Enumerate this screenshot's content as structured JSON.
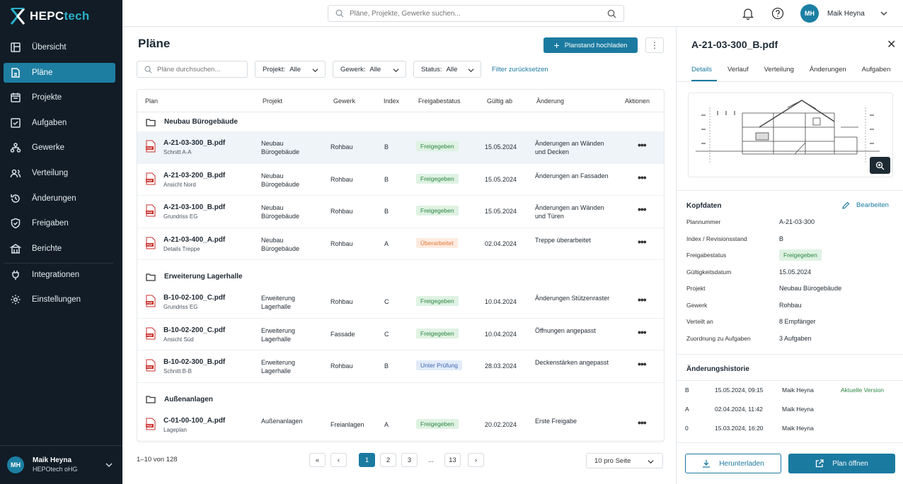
{
  "brand": {
    "name_main": "HEPC",
    "name_accent": "tech"
  },
  "nav": [
    {
      "label": "Übersicht",
      "icon": "overview-icon"
    },
    {
      "label": "Pläne",
      "icon": "plans-icon",
      "active": true
    },
    {
      "label": "Projekte",
      "icon": "projects-icon"
    },
    {
      "label": "Aufgaben",
      "icon": "tasks-icon"
    },
    {
      "label": "Gewerke",
      "icon": "trades-icon"
    },
    {
      "label": "Verteilung",
      "icon": "distribution-icon"
    },
    {
      "label": "Änderungen",
      "icon": "changes-icon"
    },
    {
      "label": "Freigaben",
      "icon": "approvals-icon"
    },
    {
      "label": "Berichte",
      "icon": "reports-icon"
    },
    {
      "label": "Integrationen",
      "icon": "integrations-icon"
    },
    {
      "label": "Einstellungen",
      "icon": "settings-icon"
    }
  ],
  "sidebar_user": {
    "initials": "MH",
    "name": "Maik Heyna",
    "company": "HEPOtech oHG"
  },
  "topbar": {
    "search_placeholder": "Pläne, Projekte, Gewerke suchen...",
    "user_initials": "MH",
    "user_name": "Maik Heyna"
  },
  "main": {
    "title": "Pläne",
    "upload_label": "Planstand hochladen",
    "more_label": "⋮",
    "filter_placeholder": "Pläne durchsuchen...",
    "filters": [
      {
        "label": "Projekt:",
        "value": "Alle"
      },
      {
        "label": "Gewerk:",
        "value": "Alle"
      },
      {
        "label": "Status:",
        "value": "Alle"
      }
    ],
    "reset_label": "Filter zurücksetzen",
    "columns": [
      "Plan",
      "Projekt",
      "Gewerk",
      "Index",
      "Freigabestatus",
      "Gültig ab",
      "Änderung",
      "Aktionen"
    ],
    "groups": [
      {
        "name": "Neubau Bürogebäude",
        "rows": [
          {
            "file": "A-21-03-300_B.pdf",
            "sub": "Schnitt A-A",
            "project": "Neubau Bürogebäude",
            "trade": "Rohbau",
            "index": "B",
            "status": "Freigegeben",
            "status_type": "green",
            "date": "15.05.2024",
            "change": "Änderungen an Wänden und Decken",
            "selected": true
          },
          {
            "file": "A-21-03-200_B.pdf",
            "sub": "Ansicht Nord",
            "project": "Neubau Bürogebäude",
            "trade": "Rohbau",
            "index": "B",
            "status": "Freigegeben",
            "status_type": "green",
            "date": "15.05.2024",
            "change": "Änderungen an Fassaden"
          },
          {
            "file": "A-21-03-100_B.pdf",
            "sub": "Grundriss EG",
            "project": "Neubau Bürogebäude",
            "trade": "Rohbau",
            "index": "B",
            "status": "Freigegeben",
            "status_type": "green",
            "date": "15.05.2024",
            "change": "Änderungen an Wänden und Türen"
          },
          {
            "file": "A-21-03-400_A.pdf",
            "sub": "Details Treppe",
            "project": "Neubau Bürogebäude",
            "trade": "Rohbau",
            "index": "A",
            "status": "Überarbeitet",
            "status_type": "orange",
            "date": "02.04.2024",
            "change": "Treppe überarbeitet"
          }
        ]
      },
      {
        "name": "Erweiterung Lagerhalle",
        "rows": [
          {
            "file": "B-10-02-100_C.pdf",
            "sub": "Grundriss EG",
            "project": "Erweiterung Lagerhalle",
            "trade": "Rohbau",
            "index": "C",
            "status": "Freigegeben",
            "status_type": "green",
            "date": "10.04.2024",
            "change": "Änderungen Stützenraster"
          },
          {
            "file": "B-10-02-200_C.pdf",
            "sub": "Ansicht Süd",
            "project": "Erweiterung Lagerhalle",
            "trade": "Fassade",
            "index": "C",
            "status": "Freigegeben",
            "status_type": "green",
            "date": "10.04.2024",
            "change": "Öffnungen angepasst"
          },
          {
            "file": "B-10-02-300_B.pdf",
            "sub": "Schnitt B-B",
            "project": "Erweiterung Lagerhalle",
            "trade": "Rohbau",
            "index": "B",
            "status": "Unter Prüfung",
            "status_type": "blue",
            "date": "28.03.2024",
            "change": "Deckenstärken angepasst"
          }
        ]
      },
      {
        "name": "Außenanlagen",
        "rows": [
          {
            "file": "C-01-00-100_A.pdf",
            "sub": "Lageplan",
            "project": "Außenanlagen",
            "trade": "Freianlagen",
            "index": "A",
            "status": "Freigegeben",
            "status_type": "green",
            "date": "20.02.2024",
            "change": "Erste Freigabe"
          }
        ]
      }
    ],
    "count_text": "1–10 von 128",
    "pages": [
      "«",
      "‹",
      "1",
      "2",
      "3",
      "...",
      "13",
      "›"
    ],
    "per_page": "10 pro Seite"
  },
  "panel": {
    "title": "A-21-03-300_B.pdf",
    "tabs": [
      "Details",
      "Verlauf",
      "Verteilung",
      "Änderungen",
      "Aufgaben"
    ],
    "kopf_title": "Kopfdaten",
    "edit_label": "Bearbeiten",
    "fields": [
      {
        "key": "Plannummer",
        "value": "A-21-03-300"
      },
      {
        "key": "Index / Revisionsstand",
        "value": "B"
      },
      {
        "key": "Freigabestatus",
        "value": "Freigegeben",
        "badge": true
      },
      {
        "key": "Gültigkeitsdatum",
        "value": "15.05.2024"
      },
      {
        "key": "Projekt",
        "value": "Neubau Bürogebäude"
      },
      {
        "key": "Gewerk",
        "value": "Rohbau"
      },
      {
        "key": "Verteilt an",
        "value": "8 Empfänger"
      },
      {
        "key": "Zuordnung zu Aufgaben",
        "value": "3 Aufgaben"
      }
    ],
    "history_title": "Änderungshistorie",
    "history": [
      {
        "index": "B",
        "datetime": "15.05.2024, 09:15",
        "user": "Maik Heyna",
        "note": "Aktuelle Version"
      },
      {
        "index": "A",
        "datetime": "02.04.2024, 11:42",
        "user": "Maik Heyna",
        "note": ""
      },
      {
        "index": "0",
        "datetime": "15.03.2024, 16:20",
        "user": "Maik Heyna",
        "note": ""
      }
    ],
    "download_label": "Herunterladen",
    "open_label": "Plan öffnen"
  },
  "colors": {
    "sidebar": "#111c26",
    "accent": "#1b7aa0",
    "active_nav": "#1e7ea2"
  }
}
